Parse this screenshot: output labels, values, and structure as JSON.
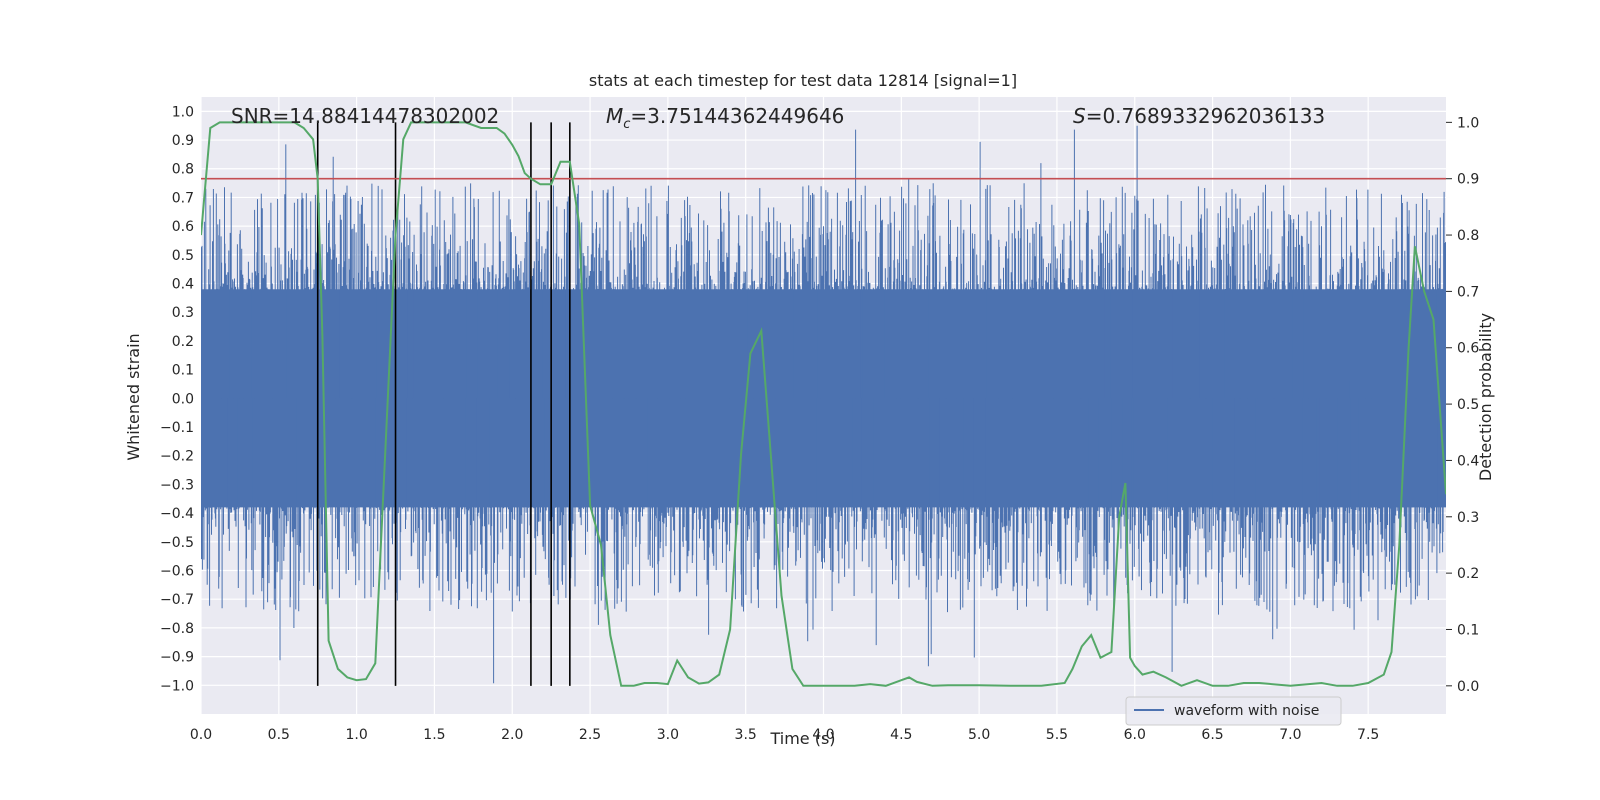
{
  "chart_data": {
    "type": "line",
    "title": "stats at each timestep for test data 12814 [signal=1]",
    "xlabel": "Time (s)",
    "ylabel_left": "Whitened strain",
    "ylabel_right": "Detection probability",
    "xlim": [
      0,
      8.0
    ],
    "ylim_left": [
      -1.1,
      1.05
    ],
    "ylim_right": [
      -0.05,
      1.045
    ],
    "x_ticks": [
      "0.0",
      "0.5",
      "1.0",
      "1.5",
      "2.0",
      "2.5",
      "3.0",
      "3.5",
      "4.0",
      "4.5",
      "5.0",
      "5.5",
      "6.0",
      "6.5",
      "7.0",
      "7.5"
    ],
    "x_tick_values": [
      0,
      0.5,
      1,
      1.5,
      2,
      2.5,
      3,
      3.5,
      4,
      4.5,
      5,
      5.5,
      6,
      6.5,
      7,
      7.5
    ],
    "y_left_ticks": [
      "1.0",
      "0.9",
      "0.8",
      "0.7",
      "0.6",
      "0.5",
      "0.4",
      "0.3",
      "0.2",
      "0.1",
      "0.0",
      "−0.1",
      "−0.2",
      "−0.3",
      "−0.4",
      "−0.5",
      "−0.6",
      "−0.7",
      "−0.8",
      "−0.9",
      "−1.0"
    ],
    "y_left_tick_values": [
      1.0,
      0.9,
      0.8,
      0.7,
      0.6,
      0.5,
      0.4,
      0.3,
      0.2,
      0.1,
      0.0,
      -0.1,
      -0.2,
      -0.3,
      -0.4,
      -0.5,
      -0.6,
      -0.7,
      -0.8,
      -0.9,
      -1.0
    ],
    "y_right_ticks": [
      "1.0",
      "0.9",
      "0.8",
      "0.7",
      "0.6",
      "0.5",
      "0.4",
      "0.3",
      "0.2",
      "0.1",
      "0.0"
    ],
    "y_right_tick_values": [
      1.0,
      0.9,
      0.8,
      0.7,
      0.6,
      0.5,
      0.4,
      0.3,
      0.2,
      0.1,
      0.0
    ],
    "annotations": {
      "snr": "SNR=14.88414478302002",
      "mc_symbol": "M",
      "mc_sub": "c",
      "mc_value": "=3.75144362449646",
      "s_symbol": "S",
      "s_value": "=0.7689332962036133"
    },
    "threshold": {
      "value": 0.9,
      "axis": "right",
      "color": "#c44e52"
    },
    "vertical_markers": [
      0.75,
      1.25,
      2.12,
      2.25,
      2.37
    ],
    "waveform": {
      "name": "waveform with noise",
      "color": "#4c72b0",
      "core_amplitude": 0.38,
      "peak_amplitude_typical": 0.65,
      "peak_amplitude_max": 1.0,
      "duration": 8.0
    },
    "detection_probability": {
      "name": "detection probability",
      "color": "#55a868",
      "x": [
        0.0,
        0.06,
        0.12,
        0.2,
        0.3,
        0.4,
        0.5,
        0.6,
        0.66,
        0.72,
        0.75,
        0.78,
        0.82,
        0.88,
        0.94,
        1.0,
        1.06,
        1.12,
        1.19,
        1.25,
        1.3,
        1.35,
        1.42,
        1.5,
        1.6,
        1.7,
        1.8,
        1.9,
        1.95,
        2.0,
        2.04,
        2.08,
        2.12,
        2.18,
        2.25,
        2.31,
        2.37,
        2.43,
        2.5,
        2.57,
        2.63,
        2.7,
        2.78,
        2.85,
        2.93,
        3.0,
        3.06,
        3.13,
        3.2,
        3.26,
        3.33,
        3.4,
        3.47,
        3.53,
        3.6,
        3.67,
        3.73,
        3.8,
        3.87,
        3.93,
        4.0,
        4.1,
        4.2,
        4.3,
        4.4,
        4.5,
        4.55,
        4.6,
        4.7,
        4.8,
        4.9,
        5.0,
        5.2,
        5.4,
        5.55,
        5.6,
        5.66,
        5.72,
        5.78,
        5.85,
        5.9,
        5.94,
        5.97,
        6.0,
        6.05,
        6.12,
        6.2,
        6.3,
        6.4,
        6.5,
        6.6,
        6.7,
        6.8,
        7.0,
        7.2,
        7.3,
        7.4,
        7.5,
        7.6,
        7.65,
        7.7,
        7.76,
        7.8,
        7.86,
        7.92,
        8.0
      ],
      "y": [
        0.8,
        0.99,
        1.0,
        1.0,
        1.0,
        1.0,
        1.0,
        1.0,
        0.99,
        0.97,
        0.9,
        0.62,
        0.08,
        0.03,
        0.015,
        0.01,
        0.012,
        0.04,
        0.45,
        0.8,
        0.97,
        1.0,
        1.0,
        1.0,
        1.0,
        1.0,
        0.99,
        0.99,
        0.98,
        0.96,
        0.94,
        0.91,
        0.9,
        0.89,
        0.89,
        0.93,
        0.93,
        0.82,
        0.32,
        0.25,
        0.09,
        0.0,
        0.0,
        0.005,
        0.005,
        0.003,
        0.045,
        0.015,
        0.004,
        0.006,
        0.02,
        0.1,
        0.41,
        0.59,
        0.63,
        0.38,
        0.16,
        0.03,
        0.0,
        0.0,
        0.0,
        0.0,
        0.0,
        0.003,
        0.0,
        0.01,
        0.015,
        0.007,
        0.0,
        0.001,
        0.001,
        0.001,
        0.0,
        0.0,
        0.005,
        0.03,
        0.07,
        0.09,
        0.05,
        0.06,
        0.3,
        0.36,
        0.05,
        0.035,
        0.02,
        0.025,
        0.015,
        0.0,
        0.01,
        0.0,
        0.0,
        0.005,
        0.005,
        0.0,
        0.005,
        0.0,
        0.0,
        0.005,
        0.02,
        0.06,
        0.25,
        0.6,
        0.78,
        0.7,
        0.65,
        0.34
      ]
    },
    "legend": {
      "entries": [
        "waveform with noise"
      ],
      "placement": "lower-right"
    }
  }
}
